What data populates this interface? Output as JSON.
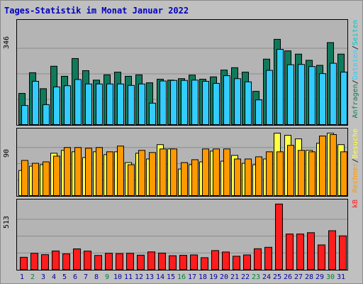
{
  "title": "Tages-Statistik im Monat Januar 2022",
  "colors": {
    "anfragen": "#0f7a5c",
    "dateien": "#33ccff",
    "seiten": "#00c8c8",
    "besuche": "#ffff44",
    "rechner": "#ff9900",
    "kb": "#ff1c1c",
    "weekend_label": "#008040",
    "weekday_label": "#0000a0"
  },
  "chart_data": [
    {
      "type": "bar",
      "panel": "top",
      "ymax_label": "346",
      "ylim": [
        0,
        346
      ],
      "categories": [
        "1",
        "2",
        "3",
        "4",
        "5",
        "6",
        "7",
        "8",
        "9",
        "10",
        "11",
        "12",
        "13",
        "14",
        "15",
        "16",
        "17",
        "18",
        "19",
        "20",
        "21",
        "22",
        "23",
        "24",
        "25",
        "26",
        "27",
        "28",
        "29",
        "30",
        "31"
      ],
      "legend": [
        "Anfragen",
        "/",
        "Dateien",
        "/",
        "Seiten"
      ],
      "series": [
        {
          "name": "Anfragen",
          "values": [
            108,
            178,
            124,
            200,
            166,
            226,
            185,
            153,
            171,
            180,
            166,
            171,
            144,
            156,
            153,
            158,
            170,
            156,
            164,
            187,
            195,
            180,
            115,
            224,
            291,
            252,
            241,
            220,
            203,
            280,
            241
          ]
        },
        {
          "name": "Dateien",
          "values": [
            67,
            149,
            70,
            130,
            134,
            155,
            140,
            140,
            140,
            140,
            135,
            140,
            75,
            150,
            152,
            152,
            153,
            149,
            142,
            168,
            158,
            147,
            86,
            186,
            257,
            205,
            206,
            199,
            175,
            210,
            180
          ]
        }
      ]
    },
    {
      "type": "bar",
      "panel": "middle",
      "ymax_label": "90",
      "ylim": [
        0,
        90
      ],
      "categories": [
        "1",
        "2",
        "3",
        "4",
        "5",
        "6",
        "7",
        "8",
        "9",
        "10",
        "11",
        "12",
        "13",
        "14",
        "15",
        "16",
        "17",
        "18",
        "19",
        "20",
        "21",
        "22",
        "23",
        "24",
        "25",
        "26",
        "27",
        "28",
        "29",
        "30",
        "31"
      ],
      "legend": [
        "Rechner",
        "/",
        "Besuche"
      ],
      "series": [
        {
          "name": "Besuche",
          "values": [
            36,
            42,
            44,
            60,
            64,
            62,
            54,
            62,
            58,
            62,
            47,
            60,
            52,
            72,
            66,
            38,
            44,
            48,
            63,
            49,
            57,
            46,
            44,
            52,
            88,
            85,
            80,
            64,
            74,
            88,
            72
          ]
        },
        {
          "name": "Rechner",
          "values": [
            50,
            46,
            48,
            56,
            68,
            68,
            67,
            68,
            62,
            70,
            44,
            64,
            61,
            66,
            66,
            47,
            51,
            66,
            66,
            66,
            52,
            52,
            55,
            62,
            62,
            71,
            64,
            62,
            84,
            86,
            62
          ]
        }
      ]
    },
    {
      "type": "bar",
      "panel": "bottom",
      "ymax_label": "513",
      "ylim": [
        0,
        513
      ],
      "categories": [
        "1",
        "2",
        "3",
        "4",
        "5",
        "6",
        "7",
        "8",
        "9",
        "10",
        "11",
        "12",
        "13",
        "14",
        "15",
        "16",
        "17",
        "18",
        "19",
        "20",
        "21",
        "22",
        "23",
        "24",
        "25",
        "26",
        "27",
        "28",
        "29",
        "30",
        "31"
      ],
      "legend": [
        "kB"
      ],
      "series": [
        {
          "name": "kB",
          "values": [
            98,
            128,
            118,
            146,
            124,
            162,
            145,
            112,
            128,
            126,
            128,
            114,
            139,
            130,
            110,
            113,
            116,
            95,
            149,
            138,
            106,
            116,
            163,
            174,
            503,
            275,
            275,
            285,
            192,
            300,
            261
          ]
        }
      ]
    }
  ],
  "weekend_days": [
    "2",
    "9",
    "16",
    "23",
    "30"
  ],
  "xlabels": [
    "1",
    "2",
    "3",
    "4",
    "5",
    "6",
    "7",
    "8",
    "9",
    "10",
    "11",
    "12",
    "13",
    "14",
    "15",
    "16",
    "17",
    "18",
    "19",
    "20",
    "21",
    "22",
    "23",
    "24",
    "25",
    "26",
    "27",
    "28",
    "29",
    "30",
    "31"
  ]
}
